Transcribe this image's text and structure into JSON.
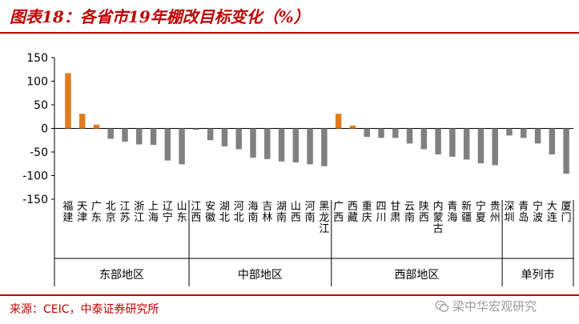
{
  "header": {
    "title": "图表18：各省市19年棚改目标变化（%）"
  },
  "footer": {
    "source": "来源：CEIC，中泰证券研究所",
    "watermark": "梁中华宏观研究",
    "watermark_icon": "wechat-icon"
  },
  "colors": {
    "positive": "#e07b1f",
    "negative": "#808080",
    "accent": "#c00000"
  },
  "chart_data": {
    "type": "bar",
    "title": "",
    "xlabel": "",
    "ylabel": "",
    "ylim": [
      -150,
      150
    ],
    "yticks": [
      150,
      100,
      50,
      0,
      -50,
      -100,
      -150
    ],
    "groups": [
      {
        "name": "东部地区",
        "categories": [
          "福建",
          "天津",
          "广东",
          "北京",
          "江苏",
          "浙江",
          "上海",
          "辽宁",
          "山东"
        ]
      },
      {
        "name": "中部地区",
        "categories": [
          "江西",
          "安徽",
          "湖北",
          "河北",
          "海南",
          "吉林",
          "湖南",
          "山西",
          "河南",
          "黑龙江"
        ]
      },
      {
        "name": "西部地区",
        "categories": [
          "广西",
          "西藏",
          "重庆",
          "四川",
          "甘肃",
          "云南",
          "陕西",
          "内蒙古",
          "青海",
          "新疆",
          "宁夏",
          "贵州"
        ]
      },
      {
        "name": "单列市",
        "categories": [
          "深圳",
          "青岛",
          "宁波",
          "大连",
          "厦门"
        ]
      }
    ],
    "categories": [
      "福建",
      "天津",
      "广东",
      "北京",
      "江苏",
      "浙江",
      "上海",
      "辽宁",
      "山东",
      "江西",
      "安徽",
      "湖北",
      "河北",
      "海南",
      "吉林",
      "湖南",
      "山西",
      "河南",
      "黑龙江",
      "广西",
      "西藏",
      "重庆",
      "四川",
      "甘肃",
      "云南",
      "陕西",
      "内蒙古",
      "青海",
      "新疆",
      "宁夏",
      "贵州",
      "深圳",
      "青岛",
      "宁波",
      "大连",
      "厦门"
    ],
    "values": [
      117,
      31,
      8,
      -22,
      -28,
      -34,
      -35,
      -68,
      -76,
      -3,
      -25,
      -38,
      -44,
      -62,
      -65,
      -70,
      -72,
      -76,
      -80,
      31,
      6,
      -18,
      -20,
      -20,
      -32,
      -44,
      -55,
      -60,
      -66,
      -74,
      -78,
      -15,
      -20,
      -32,
      -55,
      -96
    ]
  }
}
